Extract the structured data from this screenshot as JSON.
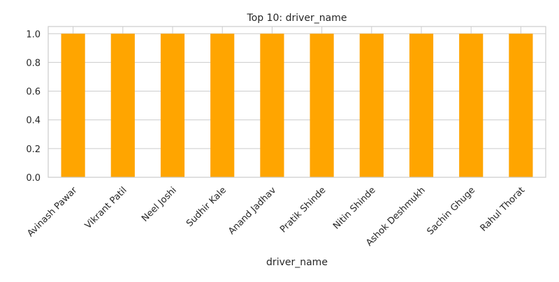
{
  "chart_data": {
    "type": "bar",
    "title": "Top 10: driver_name",
    "xlabel": "driver_name",
    "ylabel": "",
    "categories": [
      "Avinash Pawar",
      "Vikrant Patil",
      "Neel Joshi",
      "Sudhir Kale",
      "Anand Jadhav",
      "Pratik Shinde",
      "Nitin Shinde",
      "Ashok Deshmukh",
      "Sachin Ghuge",
      "Rahul Thorat"
    ],
    "values": [
      1,
      1,
      1,
      1,
      1,
      1,
      1,
      1,
      1,
      1
    ],
    "ylim": [
      0,
      1.05
    ],
    "yticks": [
      "0.0",
      "0.2",
      "0.4",
      "0.6",
      "0.8",
      "1.0"
    ],
    "grid": true,
    "bar_color": "#FFA500",
    "grid_color": "#CCCCCC",
    "axis_color": "#CCCCCC"
  }
}
